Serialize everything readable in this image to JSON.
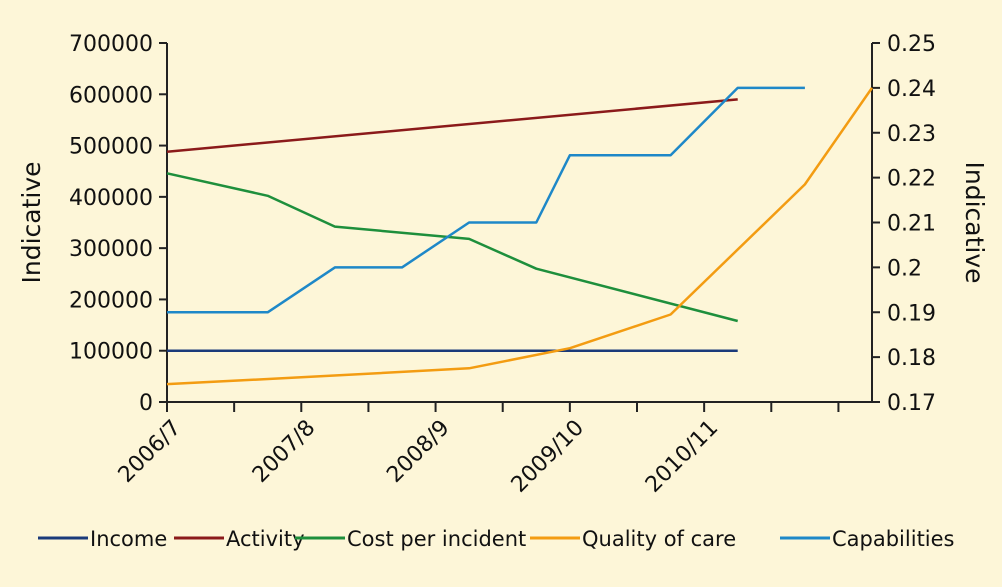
{
  "chart_data": {
    "type": "line",
    "categories": [
      "2006/7",
      "2007/8",
      "2008/9",
      "2009/10",
      "2010/11"
    ],
    "left_axis": {
      "label": "Indicative",
      "ylim": [
        0,
        700000
      ],
      "ticks": [
        0,
        100000,
        200000,
        300000,
        400000,
        500000,
        600000,
        700000
      ]
    },
    "right_axis": {
      "label": "Indicative",
      "ylim": [
        0.17,
        0.25
      ],
      "ticks": [
        0.17,
        0.18,
        0.19,
        0.2,
        0.21,
        0.22,
        0.23,
        0.24,
        0.25
      ]
    },
    "xlim": [
      0,
      10.5
    ],
    "series": [
      {
        "name": "Income",
        "color": "#1a3a7a",
        "axis": "left",
        "x": [
          0,
          8.5
        ],
        "values": [
          100000,
          100000
        ]
      },
      {
        "name": "Activity",
        "color": "#8b1a1a",
        "axis": "left",
        "x": [
          0,
          8.5
        ],
        "values": [
          488000,
          590000
        ]
      },
      {
        "name": "Cost per incident",
        "color": "#1e8f3c",
        "axis": "left",
        "x": [
          0,
          1.5,
          2.5,
          4.5,
          5.5,
          8.5
        ],
        "values": [
          446000,
          402000,
          342000,
          318000,
          260000,
          158000
        ]
      },
      {
        "name": "Quality of care",
        "color": "#f39c12",
        "axis": "right",
        "x": [
          0,
          2.0,
          4.5,
          6.0,
          7.5,
          9.5,
          10.5
        ],
        "values": [
          0.174,
          0.1755,
          0.1775,
          0.182,
          0.1895,
          0.2185,
          0.24
        ]
      },
      {
        "name": "Capabilities",
        "color": "#1e88c8",
        "axis": "right",
        "x": [
          0,
          1.5,
          2.5,
          3.5,
          4.5,
          5.5,
          6.0,
          7.5,
          8.5,
          9.5
        ],
        "values": [
          0.19,
          0.19,
          0.2,
          0.2,
          0.21,
          0.21,
          0.225,
          0.225,
          0.24,
          0.24
        ]
      }
    ]
  }
}
